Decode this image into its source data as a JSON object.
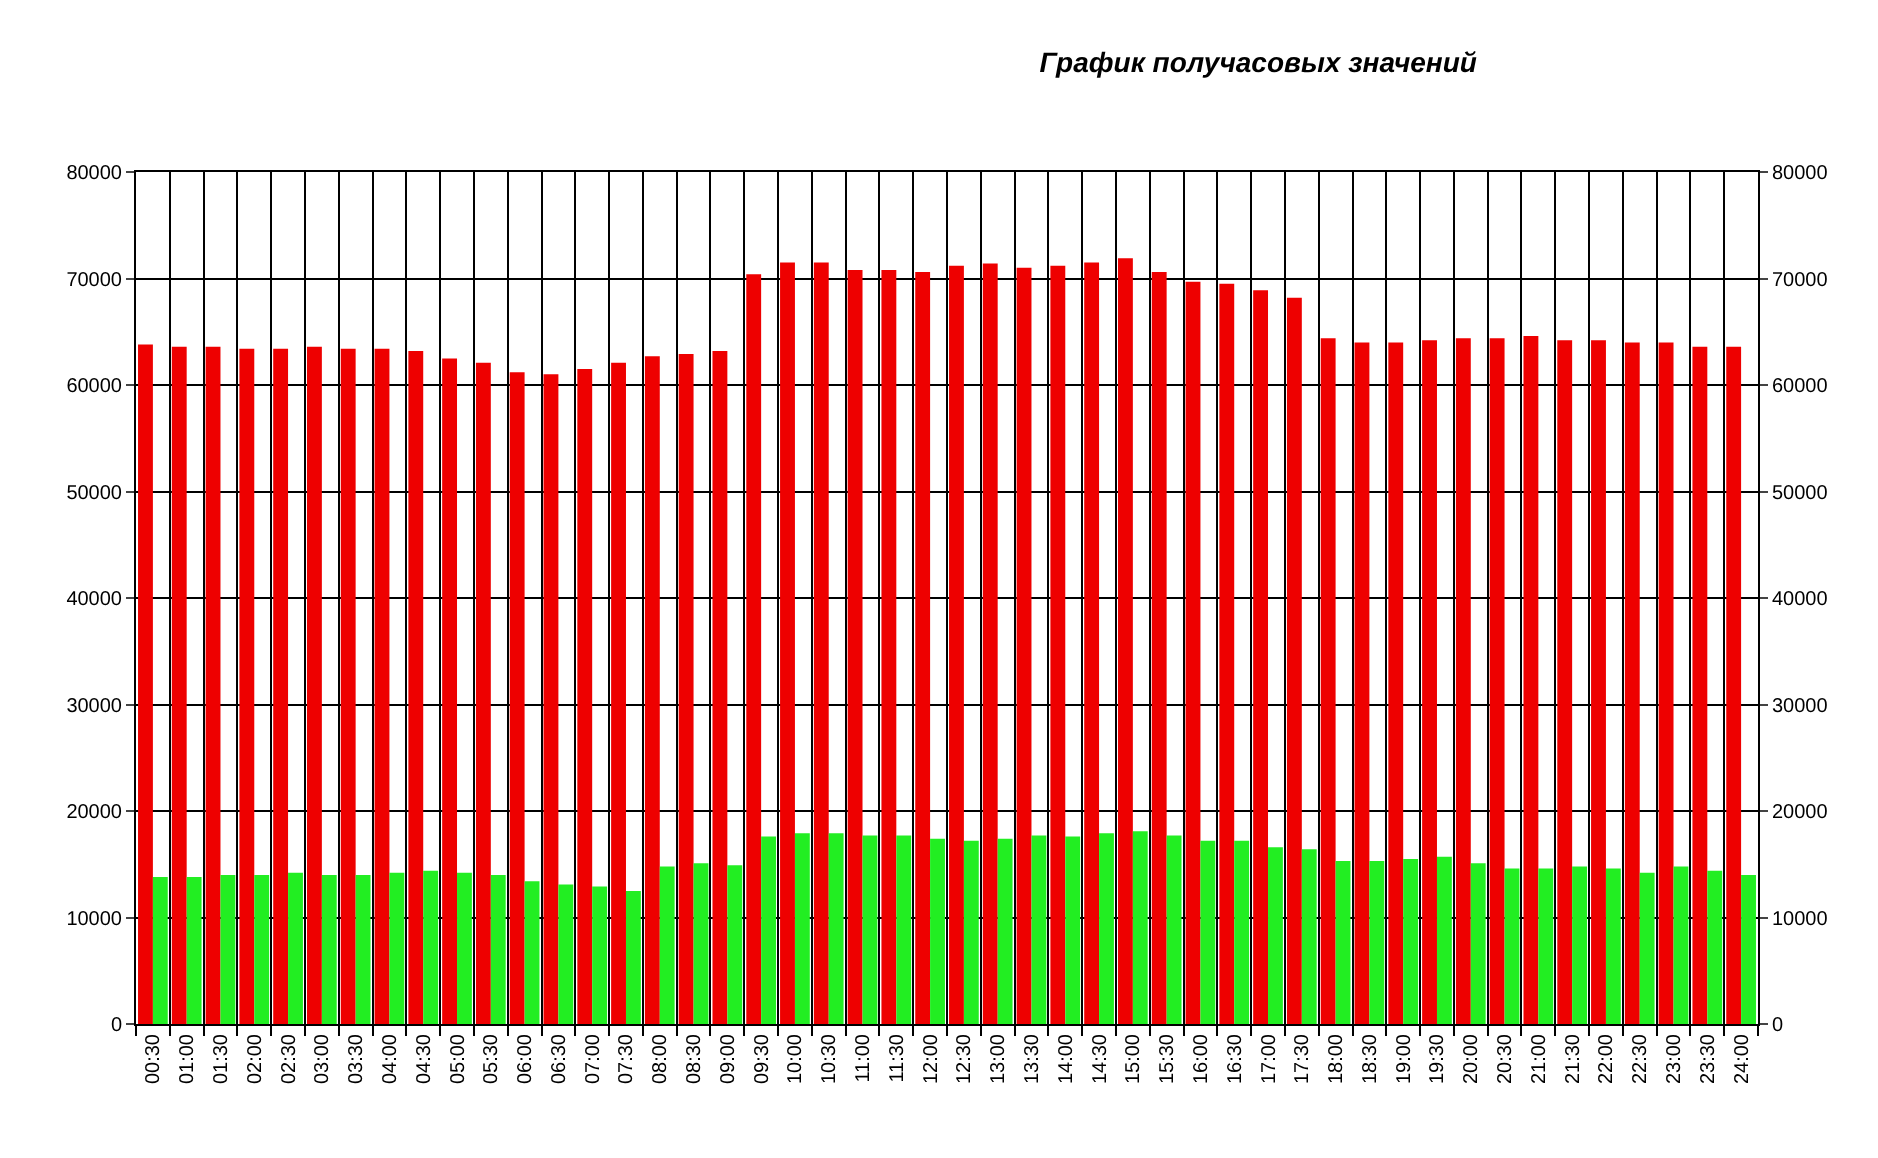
{
  "chart_data": {
    "type": "bar",
    "title": "График получасовых значений",
    "categories": [
      "00:30",
      "01:00",
      "01:30",
      "02:00",
      "02:30",
      "03:00",
      "03:30",
      "04:00",
      "04:30",
      "05:00",
      "05:30",
      "06:00",
      "06:30",
      "07:00",
      "07:30",
      "08:00",
      "08:30",
      "09:00",
      "09:30",
      "10:00",
      "10:30",
      "11:00",
      "11:30",
      "12:00",
      "12:30",
      "13:00",
      "13:30",
      "14:00",
      "14:30",
      "15:00",
      "15:30",
      "16:00",
      "16:30",
      "17:00",
      "17:30",
      "18:00",
      "18:30",
      "19:00",
      "19:30",
      "20:00",
      "20:30",
      "21:00",
      "21:30",
      "22:00",
      "22:30",
      "23:00",
      "23:30",
      "24:00"
    ],
    "series": [
      {
        "color": "#ee0000",
        "values": [
          63800,
          63600,
          63600,
          63400,
          63400,
          63600,
          63400,
          63400,
          63200,
          62500,
          62100,
          61200,
          61000,
          61500,
          62100,
          62700,
          62900,
          63200,
          70400,
          71500,
          71500,
          70800,
          70800,
          70600,
          71200,
          71400,
          71000,
          71200,
          71500,
          71900,
          70600,
          69700,
          69500,
          68900,
          68200,
          64400,
          64000,
          64000,
          64200,
          64400,
          64400,
          64600,
          64200,
          64200,
          64000,
          64000,
          63600,
          63600
        ]
      },
      {
        "color": "#22ee22",
        "values": [
          13800,
          13800,
          14000,
          14000,
          14200,
          14000,
          14000,
          14200,
          14400,
          14200,
          14000,
          13400,
          13100,
          12900,
          12500,
          14800,
          15100,
          14900,
          17600,
          17900,
          17900,
          17700,
          17700,
          17400,
          17200,
          17400,
          17700,
          17600,
          17900,
          18100,
          17700,
          17200,
          17200,
          16600,
          16400,
          15300,
          15300,
          15500,
          15700,
          15100,
          14600,
          14600,
          14800,
          14600,
          14200,
          14800,
          14400,
          14000
        ]
      }
    ],
    "ylim": [
      0,
      80000
    ],
    "yticks": [
      0,
      10000,
      20000,
      30000,
      40000,
      50000,
      60000,
      70000,
      80000
    ],
    "y2lim": [
      0,
      80000
    ],
    "y2ticks": [
      0,
      10000,
      20000,
      30000,
      40000,
      50000,
      60000,
      70000,
      80000
    ],
    "grid": true
  }
}
